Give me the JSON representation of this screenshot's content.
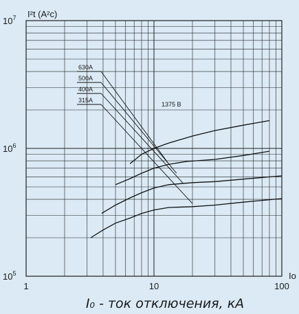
{
  "chart_data": {
    "type": "line",
    "xscale": "log",
    "yscale": "log",
    "xlim": [
      1,
      100
    ],
    "ylim": [
      100000,
      10000000
    ],
    "grid": true,
    "y_axis_label": "I²t (A²c)",
    "x_axis_label": "I₀ - ток отключения, кА",
    "x_axis_end_label": "Io",
    "x_tick_labels": [
      "1",
      "10",
      "100"
    ],
    "y_tick_labels": [
      {
        "base": "10",
        "exp": "5"
      },
      {
        "base": "10",
        "exp": "6"
      },
      {
        "base": "10",
        "exp": "7"
      }
    ],
    "annotation": "1375 В",
    "series": [
      {
        "name": "630A",
        "x": [
          6.5,
          8,
          10,
          13,
          20,
          30,
          50,
          80
        ],
        "y": [
          760000,
          900000,
          1000000,
          1100000,
          1250000,
          1380000,
          1520000,
          1650000
        ]
      },
      {
        "name": "500A",
        "x": [
          5,
          6.5,
          8,
          10,
          13,
          18,
          30,
          50,
          80
        ],
        "y": [
          520000,
          580000,
          640000,
          700000,
          750000,
          790000,
          820000,
          880000,
          950000
        ]
      },
      {
        "name": "400A",
        "x": [
          3.9,
          5,
          6.5,
          8,
          10,
          13,
          20,
          30,
          50,
          100
        ],
        "y": [
          310000,
          360000,
          410000,
          450000,
          490000,
          520000,
          540000,
          550000,
          575000,
          610000
        ]
      },
      {
        "name": "315A",
        "x": [
          3.2,
          4,
          5,
          6.5,
          8,
          10,
          13,
          20,
          30,
          50,
          100
        ],
        "y": [
          200000,
          230000,
          260000,
          285000,
          310000,
          330000,
          345000,
          350000,
          360000,
          380000,
          405000
        ]
      }
    ],
    "leaders": [
      {
        "label": "630A",
        "to": [
          13,
          760000
        ]
      },
      {
        "label": "500A",
        "to": [
          15,
          640000
        ]
      },
      {
        "label": "400A",
        "to": [
          17,
          530000
        ]
      },
      {
        "label": "315A",
        "to": [
          20,
          370000
        ]
      }
    ]
  }
}
